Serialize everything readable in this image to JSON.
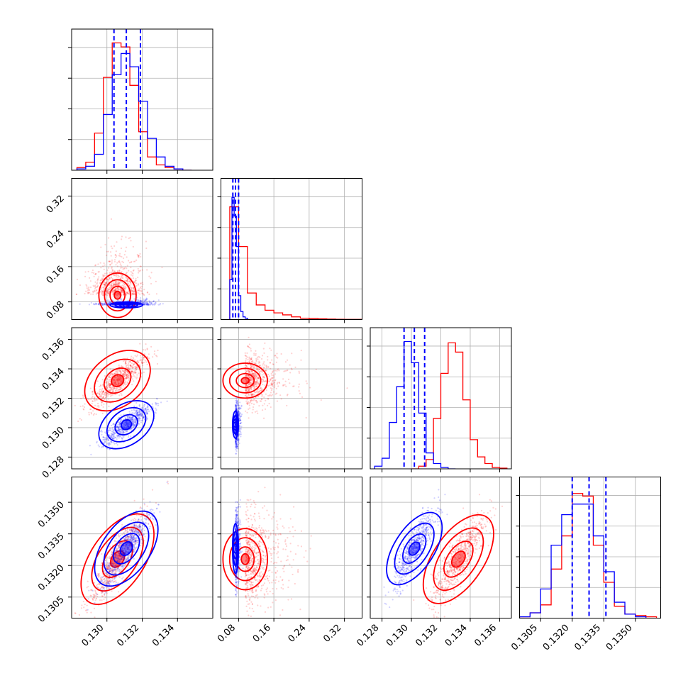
{
  "colors": {
    "red": "#ff0000",
    "blue": "#0000ff"
  },
  "chart_data": {
    "type": "corner",
    "title": "",
    "parameters": [
      "",
      "",
      "",
      ""
    ],
    "legend": "none",
    "grid": true,
    "axes": [
      {
        "lim": [
          0.128,
          0.136
        ],
        "ticks": [
          "0.130",
          "0.132",
          "0.134"
        ],
        "tick_values": [
          0.13,
          0.132,
          0.134
        ]
      },
      {
        "lim": [
          0.04,
          0.36
        ],
        "ticks": [
          "0.08",
          "0.16",
          "0.24",
          "0.32"
        ],
        "tick_values": [
          0.08,
          0.16,
          0.24,
          0.32
        ]
      },
      {
        "lim": [
          0.1272,
          0.1368
        ],
        "ticks": [
          "0.128",
          "0.130",
          "0.132",
          "0.134",
          "0.136"
        ],
        "tick_values": [
          0.128,
          0.13,
          0.132,
          0.134,
          0.136
        ]
      },
      {
        "lim": [
          0.1295,
          0.1362
        ],
        "ticks": [
          "0.1305",
          "0.1320",
          "0.1335",
          "0.1350"
        ],
        "tick_values": [
          0.1305,
          0.132,
          0.1335,
          0.135
        ]
      }
    ],
    "series": [
      {
        "color": "red",
        "centers": [
          0.1306,
          0.095,
          0.1332,
          0.1323
        ],
        "spreads": [
          0.0008,
          0.06,
          0.0009,
          0.0011
        ],
        "histograms": [
          {
            "edges": [
              0.1283,
              0.1288,
              0.1293,
              0.1298,
              0.1303,
              0.1308,
              0.1313,
              0.1318,
              0.1323,
              0.1328,
              0.1333,
              0.1338,
              0.1343,
              0.1348
            ],
            "counts": [
              0.02,
              0.06,
              0.28,
              0.7,
              0.96,
              0.93,
              0.64,
              0.29,
              0.1,
              0.04,
              0.02,
              0.01,
              0.0
            ]
          },
          {
            "edges": [
              0.06,
              0.08,
              0.1,
              0.12,
              0.14,
              0.16,
              0.18,
              0.2,
              0.22,
              0.24,
              0.26,
              0.28,
              0.3,
              0.32,
              0.34,
              0.36
            ],
            "counts": [
              0.85,
              0.55,
              0.2,
              0.11,
              0.07,
              0.05,
              0.035,
              0.02,
              0.01,
              0.007,
              0.005,
              0.003,
              0.002,
              0.001,
              0.001
            ]
          },
          {
            "edges": [
              0.13,
              0.1305,
              0.131,
              0.1315,
              0.132,
              0.1325,
              0.133,
              0.1335,
              0.134,
              0.1345,
              0.135,
              0.1355,
              0.136,
              0.1365
            ],
            "counts": [
              0.0,
              0.02,
              0.07,
              0.38,
              0.72,
              0.95,
              0.88,
              0.52,
              0.22,
              0.09,
              0.04,
              0.01,
              0.005
            ]
          },
          {
            "edges": [
              0.129,
              0.1295,
              0.13,
              0.1305,
              0.131,
              0.1315,
              0.132,
              0.1325,
              0.133,
              0.1335,
              0.134,
              0.1345,
              0.135,
              0.1355,
              0.136
            ],
            "counts": [
              0.0,
              0.01,
              0.04,
              0.1,
              0.37,
              0.62,
              0.94,
              0.92,
              0.55,
              0.27,
              0.09,
              0.03,
              0.02,
              0.01
            ]
          }
        ]
      },
      {
        "color": "blue",
        "centers": [
          0.1311,
          0.073,
          0.1302,
          0.1328
        ],
        "spreads": [
          0.0007,
          0.008,
          0.0007,
          0.0009
        ],
        "histograms": [
          {
            "edges": [
              0.1283,
              0.1288,
              0.1293,
              0.1298,
              0.1303,
              0.1308,
              0.1313,
              0.1318,
              0.1323,
              0.1328,
              0.1333,
              0.1338,
              0.1343,
              0.1348
            ],
            "counts": [
              0.01,
              0.03,
              0.12,
              0.42,
              0.72,
              0.88,
              0.78,
              0.52,
              0.24,
              0.1,
              0.03,
              0.01,
              0.0
            ]
          },
          {
            "edges": [
              0.06,
              0.065,
              0.07,
              0.075,
              0.08,
              0.085,
              0.09,
              0.095,
              0.1,
              0.105
            ],
            "counts": [
              0.3,
              0.92,
              0.78,
              0.55,
              0.18,
              0.06,
              0.02,
              0.01,
              0.0
            ]
          },
          {
            "edges": [
              0.1275,
              0.128,
              0.1285,
              0.129,
              0.1295,
              0.13,
              0.1305,
              0.131,
              0.1315,
              0.132,
              0.1325,
              0.133
            ],
            "counts": [
              0.02,
              0.08,
              0.35,
              0.62,
              0.96,
              0.8,
              0.42,
              0.12,
              0.04,
              0.01,
              0.0
            ]
          },
          {
            "edges": [
              0.129,
              0.1295,
              0.13,
              0.1305,
              0.131,
              0.1315,
              0.132,
              0.1325,
              0.133,
              0.1335,
              0.134,
              0.1345,
              0.135,
              0.1355
            ],
            "counts": [
              0.0,
              0.01,
              0.04,
              0.22,
              0.55,
              0.78,
              0.86,
              0.86,
              0.62,
              0.35,
              0.12,
              0.03,
              0.01
            ]
          }
        ]
      }
    ],
    "quantile_lines": {
      "color": "blue",
      "style": "dashed",
      "values": [
        [
          0.1304,
          0.1311,
          0.1319
        ],
        [
          0.067,
          0.073,
          0.08
        ],
        [
          0.1295,
          0.1302,
          0.1309
        ],
        [
          0.132,
          0.1328,
          0.1336
        ]
      ]
    }
  }
}
